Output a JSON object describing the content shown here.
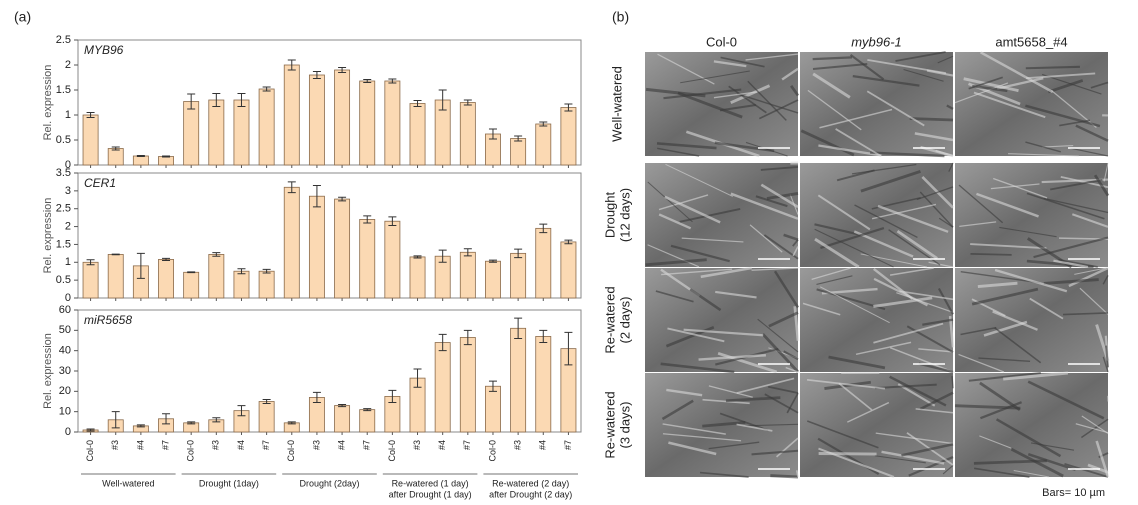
{
  "panel_labels": [
    "(a)",
    "(b)"
  ],
  "chart_data": [
    {
      "type": "bar",
      "title": "MYB96",
      "y_label": "Rel. expression",
      "values": [
        1.0,
        0.33,
        0.18,
        0.17,
        1.27,
        1.3,
        1.3,
        1.52,
        2.0,
        1.8,
        1.9,
        1.68,
        1.68,
        1.23,
        1.3,
        1.25,
        0.62,
        0.53,
        0.82,
        1.15
      ],
      "errors": [
        0.05,
        0.03,
        0.01,
        0.01,
        0.15,
        0.13,
        0.13,
        0.04,
        0.1,
        0.07,
        0.05,
        0.03,
        0.04,
        0.06,
        0.2,
        0.05,
        0.1,
        0.05,
        0.04,
        0.07
      ],
      "ylim": [
        0,
        2.5
      ],
      "yticks": [
        0,
        0.5,
        1,
        1.5,
        2,
        2.5
      ],
      "color": "#fbd9b3"
    },
    {
      "type": "bar",
      "title": "CER1",
      "y_label": "Rel. expression",
      "values": [
        1.0,
        1.22,
        0.9,
        1.08,
        0.72,
        1.22,
        0.75,
        0.75,
        3.1,
        2.85,
        2.77,
        2.2,
        2.15,
        1.15,
        1.17,
        1.28,
        1.03,
        1.25,
        1.95,
        1.57
      ],
      "errors": [
        0.07,
        0.01,
        0.35,
        0.03,
        0.01,
        0.05,
        0.07,
        0.05,
        0.15,
        0.3,
        0.05,
        0.1,
        0.12,
        0.03,
        0.17,
        0.1,
        0.03,
        0.12,
        0.12,
        0.05
      ],
      "ylim": [
        0,
        3.5
      ],
      "yticks": [
        0,
        0.5,
        1,
        1.5,
        2,
        2.5,
        3,
        3.5
      ],
      "color": "#fbd9b3"
    },
    {
      "type": "bar",
      "title": "miR5658",
      "y_label": "Rel. expression",
      "categories": [
        "Col-0",
        "#3",
        "#4",
        "#7",
        "Col-0",
        "#3",
        "#4",
        "#7",
        "Col-0",
        "#3",
        "#4",
        "#7",
        "Col-0",
        "#3",
        "#4",
        "#7",
        "Col-0",
        "#3",
        "#4",
        "#7"
      ],
      "groups": [
        [
          "Well-watered"
        ],
        [
          "Drought (1day)"
        ],
        [
          "Drought (2day)"
        ],
        [
          "Re-watered (1 day)",
          "after Drought (1 day)"
        ],
        [
          "Re-watered (2 day)",
          "after Drought (2 day)"
        ]
      ],
      "values": [
        1,
        6,
        3,
        6.5,
        4.5,
        6,
        10.5,
        15,
        4.5,
        17,
        13,
        11,
        17.5,
        26.5,
        44,
        46.5,
        22.5,
        51,
        47,
        41
      ],
      "errors": [
        0.5,
        4,
        0.5,
        2.5,
        0.5,
        1,
        2.5,
        1,
        0.5,
        2.5,
        0.5,
        0.5,
        3,
        4.5,
        4,
        3.5,
        2.5,
        5,
        3,
        8
      ],
      "ylim": [
        0,
        60
      ],
      "yticks": [
        0,
        10,
        20,
        30,
        40,
        50,
        60
      ],
      "color": "#fbd9b3"
    }
  ],
  "micrographs": {
    "columns": [
      "Col-0",
      "myb96-1",
      "amt5658_#4"
    ],
    "rows": [
      [
        "Well-watered"
      ],
      [
        "Drought",
        "(12 days)"
      ],
      [
        "Re-watered",
        "(2 days)"
      ],
      [
        "Re-watered",
        "(3 days)"
      ]
    ],
    "scale_note": "Bars= 10 µm"
  }
}
